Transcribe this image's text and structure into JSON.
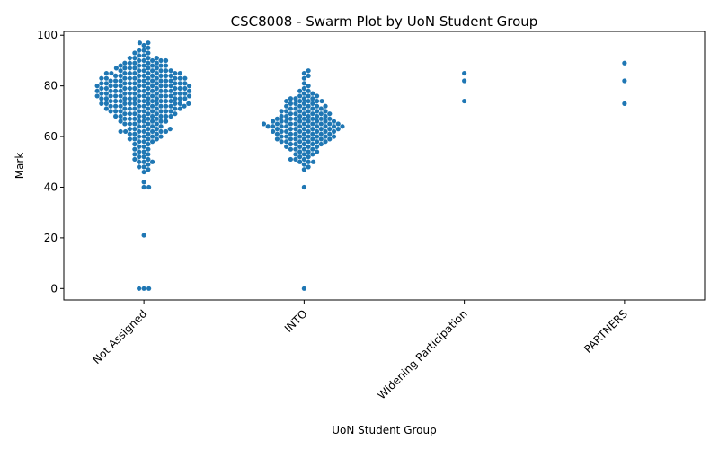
{
  "chart_data": {
    "type": "scatter",
    "title": "CSC8008 - Swarm Plot by UoN Student Group",
    "xlabel": "UoN Student Group",
    "ylabel": "Mark",
    "categories": [
      "Not Assigned",
      "INTO",
      "Widening Participation",
      "PARTNERS"
    ],
    "y_ticks": [
      0,
      20,
      40,
      60,
      80,
      100
    ],
    "ylim": [
      -4.5,
      101.5
    ],
    "grid": false,
    "marker_color": "#1f77b4",
    "series": [
      {
        "category": "Not Assigned",
        "values": [
          0,
          0,
          0,
          21,
          40,
          40,
          42,
          46,
          47,
          48,
          48,
          49,
          50,
          50,
          50,
          51,
          51,
          52,
          52,
          53,
          53,
          54,
          54,
          55,
          55,
          56,
          56,
          57,
          57,
          58,
          58,
          58,
          59,
          59,
          59,
          59,
          60,
          60,
          60,
          60,
          61,
          61,
          61,
          61,
          62,
          62,
          62,
          62,
          62,
          62,
          62,
          63,
          63,
          63,
          63,
          63,
          64,
          64,
          64,
          64,
          65,
          65,
          65,
          65,
          65,
          66,
          66,
          66,
          66,
          66,
          66,
          67,
          67,
          67,
          67,
          67,
          68,
          68,
          68,
          68,
          68,
          68,
          68,
          68,
          69,
          69,
          69,
          69,
          69,
          69,
          70,
          70,
          70,
          70,
          70,
          70,
          70,
          70,
          70,
          71,
          71,
          71,
          71,
          71,
          71,
          71,
          71,
          72,
          72,
          72,
          72,
          72,
          72,
          72,
          72,
          72,
          72,
          73,
          73,
          73,
          73,
          73,
          73,
          73,
          73,
          73,
          73,
          74,
          74,
          74,
          74,
          74,
          74,
          74,
          74,
          74,
          75,
          75,
          75,
          75,
          75,
          75,
          75,
          75,
          75,
          75,
          76,
          76,
          76,
          76,
          76,
          76,
          76,
          76,
          76,
          76,
          76,
          77,
          77,
          77,
          77,
          77,
          77,
          77,
          77,
          77,
          77,
          78,
          78,
          78,
          78,
          78,
          78,
          78,
          78,
          78,
          78,
          78,
          79,
          79,
          79,
          79,
          79,
          79,
          79,
          79,
          79,
          79,
          80,
          80,
          80,
          80,
          80,
          80,
          80,
          80,
          80,
          80,
          80,
          81,
          81,
          81,
          81,
          81,
          81,
          81,
          81,
          81,
          81,
          82,
          82,
          82,
          82,
          82,
          82,
          82,
          82,
          82,
          83,
          83,
          83,
          83,
          83,
          83,
          83,
          83,
          83,
          83,
          84,
          84,
          84,
          84,
          84,
          84,
          84,
          84,
          85,
          85,
          85,
          85,
          85,
          85,
          85,
          85,
          85,
          86,
          86,
          86,
          86,
          86,
          86,
          86,
          87,
          87,
          87,
          87,
          87,
          87,
          88,
          88,
          88,
          88,
          88,
          88,
          89,
          89,
          89,
          89,
          89,
          90,
          90,
          90,
          90,
          90,
          91,
          91,
          91,
          91,
          92,
          92,
          93,
          93,
          94,
          94,
          95,
          96,
          97,
          97
        ]
      },
      {
        "category": "INTO",
        "values": [
          0,
          40,
          47,
          48,
          49,
          50,
          50,
          50,
          51,
          51,
          51,
          52,
          52,
          53,
          53,
          53,
          54,
          54,
          54,
          55,
          55,
          55,
          55,
          56,
          56,
          56,
          56,
          57,
          57,
          57,
          57,
          57,
          58,
          58,
          58,
          58,
          58,
          58,
          59,
          59,
          59,
          59,
          59,
          59,
          59,
          60,
          60,
          60,
          60,
          60,
          60,
          60,
          61,
          61,
          61,
          61,
          61,
          61,
          61,
          62,
          62,
          62,
          62,
          62,
          62,
          62,
          62,
          63,
          63,
          63,
          63,
          63,
          63,
          63,
          63,
          64,
          64,
          64,
          64,
          64,
          64,
          64,
          64,
          64,
          64,
          65,
          65,
          65,
          65,
          65,
          65,
          65,
          65,
          65,
          66,
          66,
          66,
          66,
          66,
          66,
          66,
          66,
          67,
          67,
          67,
          67,
          67,
          67,
          67,
          68,
          68,
          68,
          68,
          68,
          68,
          69,
          69,
          69,
          69,
          69,
          69,
          70,
          70,
          70,
          70,
          70,
          70,
          71,
          71,
          71,
          71,
          71,
          72,
          72,
          72,
          72,
          72,
          73,
          73,
          73,
          73,
          74,
          74,
          74,
          74,
          74,
          75,
          75,
          75,
          75,
          76,
          76,
          76,
          77,
          77,
          78,
          78,
          79,
          80,
          81,
          83,
          84,
          85,
          86
        ]
      },
      {
        "category": "Widening Participation",
        "values": [
          74,
          82,
          85
        ]
      },
      {
        "category": "PARTNERS",
        "values": [
          73,
          82,
          89
        ]
      }
    ]
  }
}
